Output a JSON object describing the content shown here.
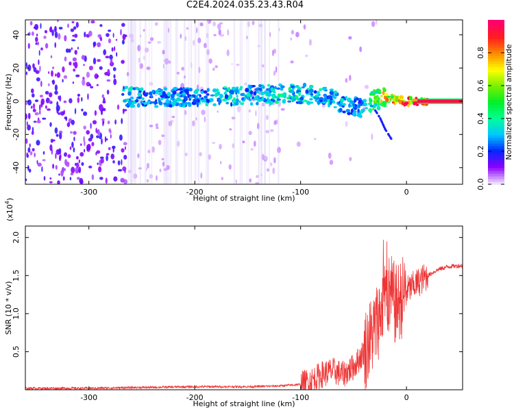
{
  "chart_data": [
    {
      "type": "heatmap",
      "title": "C2E4.2024.035.23.43.R04",
      "xlabel": "Height of straight line (km)",
      "ylabel": "Frequency (Hz)",
      "xlim": [
        -360,
        53
      ],
      "ylim": [
        -50,
        49
      ],
      "xticks": [
        -300,
        -200,
        -100,
        0
      ],
      "yticks": [
        -40,
        -20,
        0,
        20,
        40
      ],
      "colorbar": {
        "label": "Normalized spectral amplitude",
        "range": [
          0.0,
          1.0
        ],
        "ticks": [
          "0.0",
          "0.2",
          "0.4",
          "0.6",
          "0.8"
        ]
      },
      "ridge": {
        "x": [
          -265,
          -250,
          -230,
          -200,
          -170,
          -140,
          -110,
          -90,
          -70,
          -55,
          -40,
          -30,
          -20,
          0,
          53
        ],
        "freq": [
          3,
          2,
          2,
          3,
          3,
          4,
          5,
          4,
          2,
          -3,
          -4,
          1,
          2,
          0,
          0
        ],
        "amplitude": [
          0.35,
          0.3,
          0.3,
          0.3,
          0.35,
          0.35,
          0.4,
          0.35,
          0.35,
          0.3,
          0.3,
          0.55,
          0.75,
          0.9,
          0.95
        ]
      },
      "branch": {
        "x": [
          -30,
          -25,
          -20,
          -14
        ],
        "freq": [
          -5,
          -10,
          -17,
          -23
        ]
      },
      "grid": false
    },
    {
      "type": "line",
      "xlabel": "Height of straight line (km)",
      "ylabel": "SNR (10 * v/v)",
      "y_multiplier": "(x10",
      "y_multiplier_exp": "4",
      "y_multiplier_close": ")",
      "xlim": [
        -360,
        53
      ],
      "ylim": [
        0,
        2.15
      ],
      "xticks": [
        -300,
        -200,
        -100,
        0
      ],
      "yticks": [
        "0.5",
        "1.0",
        "1.5",
        "2.0"
      ],
      "series": [
        {
          "color": "#ee3333",
          "x": [
            -360,
            -300,
            -250,
            -200,
            -150,
            -120,
            -100,
            -90,
            -80,
            -70,
            -60,
            -50,
            -40,
            -30,
            -25,
            -20,
            -15,
            -10,
            -5,
            0,
            5,
            10,
            15,
            20,
            30,
            40,
            53
          ],
          "y": [
            0.02,
            0.02,
            0.03,
            0.04,
            0.04,
            0.05,
            0.07,
            0.12,
            0.2,
            0.25,
            0.2,
            0.3,
            0.5,
            0.8,
            1.0,
            1.2,
            1.25,
            1.1,
            1.2,
            1.3,
            1.35,
            1.4,
            1.45,
            1.5,
            1.58,
            1.62,
            1.63
          ]
        }
      ],
      "grid": false
    }
  ]
}
